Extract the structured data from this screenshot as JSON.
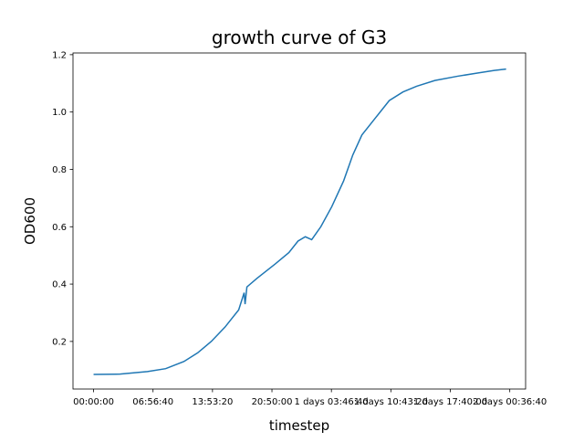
{
  "chart_data": {
    "type": "line",
    "title": "growth curve of G3",
    "x_label": "timestep",
    "y_label": "OD600",
    "x": [
      0,
      11130,
      22640,
      30315,
      37990,
      43745,
      49500,
      55260,
      61010,
      63315,
      63700,
      64470,
      68690,
      76360,
      82120,
      85955,
      89025,
      91710,
      95550,
      100150,
      105140,
      108980,
      112820,
      118570,
      124330,
      130080,
      135840,
      143510,
      153110,
      160780,
      168460,
      173450
    ],
    "series": [
      {
        "name": "OD600",
        "color": "#1f77b4",
        "values": [
          0.085,
          0.086,
          0.095,
          0.105,
          0.13,
          0.16,
          0.2,
          0.25,
          0.31,
          0.37,
          0.33,
          0.39,
          0.42,
          0.47,
          0.51,
          0.55,
          0.565,
          0.555,
          0.6,
          0.67,
          0.76,
          0.85,
          0.92,
          0.98,
          1.04,
          1.07,
          1.09,
          1.11,
          1.125,
          1.135,
          1.145,
          1.15
        ]
      }
    ],
    "xlim": [
      -8650,
      181650
    ],
    "xticks": [
      {
        "value": 0,
        "label": "00:00:00"
      },
      {
        "value": 25000,
        "label": "06:56:40"
      },
      {
        "value": 50000,
        "label": "13:53:20"
      },
      {
        "value": 75000,
        "label": "20:50:00"
      },
      {
        "value": 100000,
        "label": "1 days 03:46:40"
      },
      {
        "value": 125000,
        "label": "1 days 10:43:20"
      },
      {
        "value": 150000,
        "label": "1 days 17:40:00"
      },
      {
        "value": 175000,
        "label": "2 days 00:36:40"
      }
    ],
    "ylim": [
      0.034,
      1.206
    ],
    "yticks": [
      0.2,
      0.4,
      0.6,
      0.8,
      {
        "value": 1.0,
        "label": "1.0"
      },
      1.2
    ]
  }
}
